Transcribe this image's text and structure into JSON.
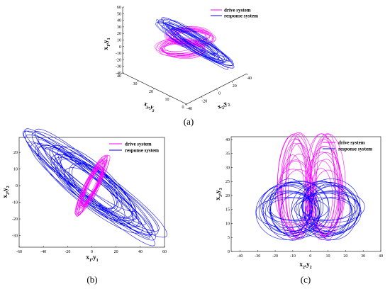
{
  "colors": {
    "drive": "#ff00ff",
    "response": "#0000ff"
  },
  "chart_data": [
    {
      "type": "scatter",
      "panel_label": "(a)",
      "view": "3d",
      "legend": {
        "placement": "top-right"
      },
      "axes": {
        "z": {
          "label_main": "x",
          "sub1": "1",
          "sep": ",",
          "label_main2": "y",
          "sub2": "1",
          "ticks": [
            "60",
            "50",
            "40",
            "30",
            "20",
            "10",
            "0",
            "-10",
            "-20",
            "-30",
            "-40"
          ],
          "range": [
            -40,
            60
          ]
        },
        "y3": {
          "label_main": "x",
          "sub1": "3",
          "sep": ",",
          "label_main2": "y",
          "sub2": "3",
          "ticks": [
            "40",
            "30",
            "20",
            "10",
            "0"
          ],
          "range": [
            0,
            40
          ]
        },
        "x2": {
          "label_main": "x",
          "sub1": "2",
          "sep": ",",
          "label_main2": "y",
          "sub2": "2",
          "ticks": [
            "-40",
            "-20",
            "0",
            "20",
            "40"
          ],
          "range": [
            -40,
            40
          ]
        }
      },
      "series": [
        {
          "name": "drive system",
          "color": "#ff00ff",
          "shape": "double-scroll-loops",
          "center": [
            0,
            20,
            0
          ],
          "spread": [
            16,
            8,
            14
          ]
        },
        {
          "name": "response system",
          "color": "#0000ff",
          "shape": "elongated-diagonal-loops",
          "center": [
            0,
            20,
            0
          ],
          "spread": [
            25,
            10,
            25
          ]
        }
      ]
    },
    {
      "type": "scatter",
      "panel_label": "(b)",
      "legend": {
        "placement": "top-right"
      },
      "xlabel": {
        "main": "x",
        "sub1": "1",
        "sep": ",",
        "main2": "y",
        "sub2": "1"
      },
      "ylabel": {
        "main": "x",
        "sub1": "2",
        "sep": ",",
        "main2": "y",
        "sub2": "2"
      },
      "xlim": [
        -60,
        60
      ],
      "ylim": [
        -37,
        29
      ],
      "xticks": [
        -60,
        -40,
        -20,
        0,
        20,
        40,
        60
      ],
      "yticks": [
        -30,
        -20,
        -10,
        0,
        10,
        20
      ],
      "series": [
        {
          "name": "drive system",
          "color": "#ff00ff",
          "shape": "narrow-ellipse-band",
          "center": [
            0,
            0
          ],
          "extent_end": [
            15,
            18
          ],
          "width": 5
        },
        {
          "name": "response system",
          "color": "#0000ff",
          "shape": "diagonal-ellipse-band",
          "center": [
            0,
            0
          ],
          "extent_end": [
            -45,
            22
          ],
          "extent_end2": [
            55,
            -30
          ],
          "width": 11
        }
      ]
    },
    {
      "type": "scatter",
      "panel_label": "(c)",
      "legend": {
        "placement": "top-right"
      },
      "xlabel": {
        "main": "x",
        "sub1": "2",
        "sep": ",",
        "main2": "y",
        "sub2": "2"
      },
      "ylabel": {
        "main": "x",
        "sub1": "3",
        "sep": ",",
        "main2": "y",
        "sub2": "3"
      },
      "xlim": [
        -45,
        40
      ],
      "ylim": [
        0,
        41
      ],
      "xticks": [
        -40,
        -30,
        -20,
        -10,
        0,
        10,
        20,
        30,
        40
      ],
      "yticks": [
        0,
        5,
        10,
        15,
        20,
        25,
        30,
        35,
        40
      ],
      "series": [
        {
          "name": "drive system",
          "color": "#ff00ff",
          "shape": "butterfly-lobes",
          "lobe_centers": [
            -8,
            8
          ],
          "y_range": [
            8,
            34
          ]
        },
        {
          "name": "response system",
          "color": "#0000ff",
          "shape": "double-ring",
          "center": [
            0,
            15
          ],
          "x_extent": [
            -30,
            28
          ],
          "y_range": [
            3,
            27
          ]
        }
      ]
    }
  ]
}
